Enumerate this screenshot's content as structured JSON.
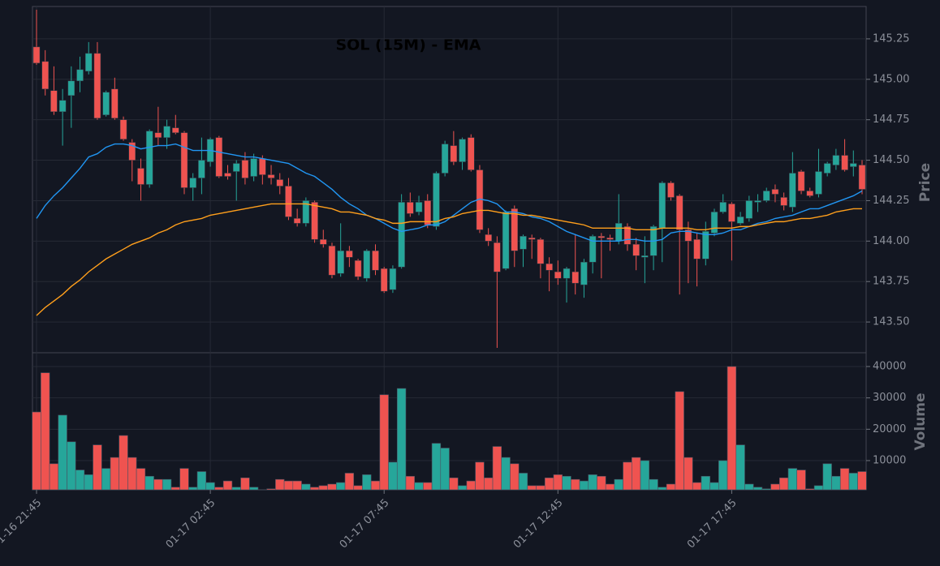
{
  "chart_data": {
    "type": "candlestick",
    "title": "SOL (15M) - EMA",
    "ylabel": "Price",
    "volume_label": "Volume",
    "categories": [
      "01-16 21:45",
      null,
      null,
      null,
      null,
      null,
      null,
      null,
      null,
      null,
      null,
      null,
      null,
      null,
      null,
      null,
      null,
      null,
      null,
      null,
      "01-17 02:45",
      null,
      null,
      null,
      null,
      null,
      null,
      null,
      null,
      null,
      null,
      null,
      null,
      null,
      null,
      null,
      null,
      null,
      null,
      null,
      "01-17 07:45",
      null,
      null,
      null,
      null,
      null,
      null,
      null,
      null,
      null,
      null,
      null,
      null,
      null,
      null,
      null,
      null,
      null,
      null,
      null,
      "01-17 12:45",
      null,
      null,
      null,
      null,
      null,
      null,
      null,
      null,
      null,
      null,
      null,
      null,
      null,
      null,
      null,
      null,
      null,
      null,
      null,
      "01-17 17:45",
      null,
      null,
      null,
      null,
      null,
      null,
      null,
      null,
      null,
      null,
      null,
      null,
      null,
      null,
      null
    ],
    "open": [
      145.2,
      145.11,
      144.93,
      144.8,
      144.9,
      144.99,
      145.05,
      145.16,
      144.78,
      144.94,
      144.75,
      144.61,
      144.45,
      144.35,
      144.67,
      144.64,
      144.7,
      144.67,
      144.33,
      144.39,
      144.49,
      144.64,
      144.42,
      144.43,
      144.5,
      144.4,
      144.51,
      144.41,
      144.38,
      144.34,
      144.14,
      144.11,
      144.24,
      144.01,
      143.97,
      143.8,
      143.94,
      143.88,
      143.77,
      143.94,
      143.83,
      143.7,
      143.84,
      144.24,
      144.18,
      144.25,
      144.09,
      144.42,
      144.59,
      144.49,
      144.64,
      144.44,
      144.04,
      143.99,
      143.83,
      144.2,
      143.95,
      144.02,
      144.01,
      143.86,
      143.81,
      143.77,
      143.81,
      143.73,
      143.87,
      144.03,
      144.02,
      144.0,
      144.09,
      143.98,
      143.9,
      143.91,
      144.08,
      144.36,
      144.28,
      144.07,
      144.01,
      143.89,
      144.05,
      144.18,
      144.23,
      144.11,
      144.14,
      144.24,
      144.25,
      144.32,
      144.27,
      144.21,
      144.43,
      144.31,
      144.29,
      144.42,
      144.47,
      144.53,
      144.46,
      144.47
    ],
    "high": [
      145.43,
      145.18,
      145.08,
      144.94,
      145.08,
      145.14,
      145.23,
      145.23,
      144.93,
      145.01,
      144.77,
      144.63,
      144.51,
      144.69,
      144.83,
      144.75,
      144.78,
      144.68,
      144.42,
      144.64,
      144.64,
      144.65,
      144.47,
      144.5,
      144.55,
      144.54,
      144.53,
      144.47,
      144.42,
      144.39,
      144.2,
      144.27,
      144.25,
      144.07,
      143.99,
      144.11,
      143.97,
      143.89,
      143.95,
      143.98,
      143.84,
      143.85,
      144.29,
      144.3,
      144.28,
      144.29,
      144.43,
      144.62,
      144.68,
      144.64,
      144.66,
      144.47,
      144.08,
      144.03,
      144.19,
      144.22,
      144.04,
      144.04,
      144.02,
      143.9,
      143.88,
      143.84,
      144.04,
      143.89,
      144.04,
      144.05,
      144.04,
      144.29,
      144.11,
      144.02,
      144.03,
      144.1,
      144.37,
      144.37,
      144.29,
      144.12,
      144.05,
      144.12,
      144.2,
      144.29,
      144.24,
      144.18,
      144.28,
      144.29,
      144.33,
      144.35,
      144.3,
      144.55,
      144.44,
      144.33,
      144.57,
      144.49,
      144.57,
      144.63,
      144.56,
      144.5
    ],
    "low": [
      145.09,
      144.9,
      144.78,
      144.59,
      144.7,
      144.92,
      145.03,
      144.75,
      144.77,
      144.75,
      144.62,
      144.37,
      144.25,
      144.33,
      144.59,
      144.57,
      144.66,
      144.29,
      144.25,
      144.29,
      144.46,
      144.39,
      144.38,
      144.25,
      144.35,
      144.37,
      144.35,
      144.35,
      144.29,
      144.13,
      144.09,
      144.09,
      143.99,
      143.96,
      143.77,
      143.78,
      143.84,
      143.76,
      143.75,
      143.79,
      143.68,
      143.68,
      143.83,
      144.15,
      144.16,
      144.08,
      144.07,
      144.4,
      144.47,
      144.44,
      144.43,
      144.05,
      143.97,
      143.34,
      143.82,
      143.84,
      143.84,
      143.89,
      143.77,
      143.69,
      143.73,
      143.62,
      143.67,
      143.65,
      143.8,
      143.77,
      143.94,
      143.98,
      143.94,
      143.82,
      143.74,
      143.82,
      143.87,
      144.25,
      143.67,
      143.74,
      143.72,
      143.85,
      144.03,
      144.17,
      143.88,
      144.1,
      144.12,
      144.18,
      144.24,
      144.24,
      144.19,
      144.18,
      144.29,
      144.27,
      144.27,
      144.4,
      144.44,
      144.43,
      144.4,
      144.29
    ],
    "close": [
      145.1,
      144.94,
      144.8,
      144.87,
      144.99,
      145.06,
      145.16,
      144.76,
      144.92,
      144.76,
      144.63,
      144.5,
      144.35,
      144.68,
      144.64,
      144.71,
      144.67,
      144.33,
      144.39,
      144.5,
      144.63,
      144.4,
      144.4,
      144.48,
      144.39,
      144.51,
      144.41,
      144.39,
      144.34,
      144.15,
      144.11,
      144.25,
      144.01,
      143.98,
      143.79,
      143.94,
      143.9,
      143.78,
      143.94,
      143.82,
      143.69,
      143.83,
      144.24,
      144.17,
      144.24,
      144.1,
      144.42,
      144.6,
      144.49,
      144.63,
      144.44,
      144.07,
      144.0,
      143.81,
      144.18,
      143.94,
      144.03,
      144.01,
      143.86,
      143.82,
      143.77,
      143.83,
      143.74,
      143.87,
      144.03,
      144.02,
      144.01,
      144.11,
      143.98,
      143.91,
      143.91,
      144.09,
      144.36,
      144.27,
      144.07,
      144.0,
      143.89,
      144.06,
      144.18,
      144.24,
      144.12,
      144.15,
      144.25,
      144.25,
      144.31,
      144.29,
      144.22,
      144.42,
      144.31,
      144.28,
      144.43,
      144.48,
      144.53,
      144.44,
      144.48,
      144.32
    ],
    "volume": [
      25500,
      38000,
      9000,
      24500,
      16000,
      7000,
      5500,
      15000,
      7500,
      11000,
      18000,
      11000,
      7500,
      5000,
      4000,
      4000,
      1500,
      7500,
      1500,
      6500,
      3000,
      1500,
      3500,
      1500,
      4500,
      1500,
      700,
      1000,
      4000,
      3500,
      3500,
      2500,
      1500,
      2000,
      2500,
      3000,
      6000,
      2000,
      5500,
      3500,
      31000,
      9500,
      33000,
      5000,
      3000,
      3000,
      15500,
      14000,
      4500,
      2000,
      3500,
      9500,
      4500,
      14500,
      11000,
      9000,
      6000,
      2000,
      2000,
      4500,
      5500,
      5000,
      4000,
      3500,
      5500,
      5000,
      2500,
      4000,
      9500,
      11000,
      10000,
      4000,
      1500,
      2500,
      32000,
      11000,
      3000,
      5000,
      3000,
      10000,
      40000,
      15000,
      2500,
      1500,
      1000,
      2500,
      4500,
      7500,
      7000,
      1000,
      2000,
      9000,
      5000,
      7500,
      6000,
      6500
    ],
    "lines": [
      {
        "color": "#2196f3",
        "values": [
          144.14,
          144.22,
          144.28,
          144.33,
          144.39,
          144.45,
          144.52,
          144.54,
          144.58,
          144.6,
          144.6,
          144.59,
          144.57,
          144.58,
          144.59,
          144.59,
          144.6,
          144.58,
          144.56,
          144.56,
          144.56,
          144.55,
          144.54,
          144.53,
          144.52,
          144.52,
          144.51,
          144.5,
          144.49,
          144.48,
          144.45,
          144.42,
          144.4,
          144.36,
          144.32,
          144.27,
          144.23,
          144.2,
          144.16,
          144.14,
          144.11,
          144.08,
          144.06,
          144.07,
          144.08,
          144.1,
          144.1,
          144.12,
          144.16,
          144.2,
          144.24,
          144.26,
          144.25,
          144.23,
          144.18,
          144.18,
          144.17,
          144.15,
          144.14,
          144.12,
          144.09,
          144.06,
          144.04,
          144.02,
          144.0,
          144.0,
          144.0,
          144.0,
          144.01,
          144.01,
          144.0,
          144.0,
          144.01,
          144.05,
          144.06,
          144.06,
          144.05,
          144.04,
          144.04,
          144.05,
          144.07,
          144.07,
          144.09,
          144.11,
          144.12,
          144.14,
          144.15,
          144.16,
          144.18,
          144.2,
          144.2,
          144.22,
          144.24,
          144.26,
          144.28,
          144.31
        ]
      },
      {
        "color": "#ff9f1c",
        "values": [
          143.54,
          143.59,
          143.63,
          143.67,
          143.72,
          143.76,
          143.81,
          143.85,
          143.89,
          143.92,
          143.95,
          143.98,
          144.0,
          144.02,
          144.05,
          144.07,
          144.1,
          144.12,
          144.13,
          144.14,
          144.16,
          144.17,
          144.18,
          144.19,
          144.2,
          144.21,
          144.22,
          144.23,
          144.23,
          144.23,
          144.23,
          144.23,
          144.22,
          144.21,
          144.2,
          144.18,
          144.18,
          144.17,
          144.16,
          144.14,
          144.13,
          144.11,
          144.11,
          144.12,
          144.12,
          144.12,
          144.12,
          144.14,
          144.15,
          144.17,
          144.18,
          144.19,
          144.19,
          144.18,
          144.17,
          144.17,
          144.16,
          144.16,
          144.15,
          144.14,
          144.13,
          144.12,
          144.11,
          144.1,
          144.08,
          144.08,
          144.08,
          144.08,
          144.08,
          144.07,
          144.07,
          144.07,
          144.08,
          144.08,
          144.08,
          144.08,
          144.07,
          144.07,
          144.08,
          144.08,
          144.08,
          144.09,
          144.09,
          144.1,
          144.11,
          144.12,
          144.12,
          144.13,
          144.14,
          144.14,
          144.15,
          144.16,
          144.18,
          144.19,
          144.2,
          144.2
        ]
      }
    ],
    "up_color": "#26a69a",
    "down_color": "#ef5350",
    "ylim": [
      143.31,
      145.45
    ],
    "yticks": [
      {
        "value": 143.5,
        "label": "143.50"
      },
      143.75,
      {
        "value": 144.0,
        "label": "144.00"
      },
      144.25,
      {
        "value": 144.5,
        "label": "144.50"
      },
      144.75,
      {
        "value": 145.0,
        "label": "145.00"
      },
      145.25
    ],
    "volume_lim": [
      690,
      44400
    ],
    "volume_ticks": [
      10000,
      20000,
      30000,
      40000
    ],
    "grid": true
  }
}
